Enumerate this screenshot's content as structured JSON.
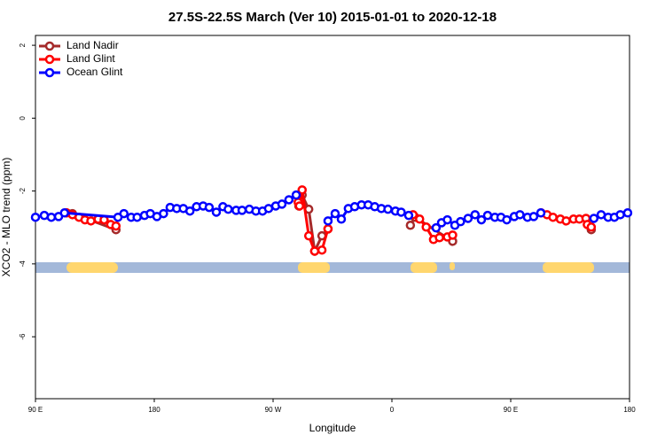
{
  "chart_data": {
    "type": "line",
    "title": "27.5S-22.5S March (Ver 10)   2015-01-01 to 2020-12-18",
    "x_label": "Longitude",
    "y_label": "XCO2 - MLO trend (ppm)",
    "xlim": [
      90,
      540
    ],
    "xticks": [
      {
        "value": 90,
        "label": "90 E"
      },
      180,
      {
        "value": 270,
        "label": "90 W"
      },
      {
        "value": 360,
        "label": "0"
      },
      {
        "value": 450,
        "label": "90 E"
      },
      {
        "value": 540,
        "label": "180"
      }
    ],
    "ylim": [
      -7.7,
      2.27
    ],
    "yticks": [
      2,
      0,
      -2,
      -4,
      -6
    ],
    "legend": "top-left",
    "series": [
      {
        "name": "Land Nadir",
        "color": "#a52a2a",
        "x": [
          113.5,
          118,
          151,
          null,
          289.5,
          292,
          297,
          301.5,
          307,
          311.6,
          null,
          374,
          377.5,
          406,
          null,
          511
        ],
        "values": [
          -2.6,
          -2.62,
          -3.06,
          null,
          -2.41,
          -2.11,
          -2.5,
          -3.65,
          -3.23,
          -3.04,
          null,
          -2.94,
          -2.72,
          -3.38,
          null,
          -3.06
        ]
      },
      {
        "name": "Land Glint",
        "color": "#ff0000",
        "x": [
          113.5,
          118,
          123,
          127.5,
          132,
          137.5,
          142,
          147,
          151,
          null,
          289,
          290,
          292,
          297,
          301.5,
          307,
          311.6,
          null,
          376,
          381,
          386,
          391.5,
          396,
          402,
          406,
          null,
          473,
          477.5,
          482,
          487.6,
          492,
          497.6,
          502,
          507,
          508,
          511
        ],
        "values": [
          -2.6,
          -2.65,
          -2.72,
          -2.79,
          -2.82,
          -2.77,
          -2.79,
          -2.92,
          -2.96,
          null,
          -2.31,
          -2.41,
          -1.97,
          -3.23,
          -3.65,
          -3.62,
          -3.04,
          null,
          -2.65,
          -2.77,
          -2.99,
          -3.33,
          -3.28,
          -3.26,
          -3.21,
          null,
          -2.6,
          -2.65,
          -2.72,
          -2.77,
          -2.82,
          -2.77,
          -2.77,
          -2.75,
          -2.92,
          -2.99
        ]
      },
      {
        "name": "Ocean Glint",
        "color": "#0000ff",
        "x": [
          90,
          96.7,
          102,
          107.5,
          112,
          152.5,
          157,
          162.5,
          167,
          172.6,
          177,
          182,
          187,
          192,
          197,
          202,
          207,
          212,
          217,
          221.6,
          227,
          232,
          236,
          242,
          246.5,
          252,
          257,
          262,
          266.6,
          272,
          276.7,
          282,
          287.5,
          null,
          311.6,
          317,
          321.7,
          327,
          331.8,
          337,
          342,
          347,
          352,
          357,
          362.7,
          367,
          372.7,
          null,
          393.5,
          397.6,
          402,
          407.7,
          412,
          417.7,
          423,
          427.8,
          432.5,
          438,
          442.6,
          447,
          452.7,
          457,
          462.7,
          467.4,
          472.8,
          null,
          513,
          518.5,
          523.8,
          528.5,
          533,
          538.6
        ],
        "values": [
          -2.72,
          -2.67,
          -2.72,
          -2.7,
          -2.6,
          -2.72,
          -2.62,
          -2.72,
          -2.72,
          -2.67,
          -2.62,
          -2.7,
          -2.62,
          -2.45,
          -2.48,
          -2.48,
          -2.55,
          -2.43,
          -2.41,
          -2.45,
          -2.58,
          -2.43,
          -2.5,
          -2.53,
          -2.53,
          -2.5,
          -2.55,
          -2.55,
          -2.48,
          -2.41,
          -2.36,
          -2.24,
          -2.11,
          null,
          -2.82,
          -2.62,
          -2.77,
          -2.48,
          -2.43,
          -2.38,
          -2.38,
          -2.43,
          -2.48,
          -2.5,
          -2.55,
          -2.58,
          -2.67,
          null,
          -3.01,
          -2.87,
          -2.79,
          -2.94,
          -2.84,
          -2.75,
          -2.65,
          -2.79,
          -2.67,
          -2.72,
          -2.72,
          -2.79,
          -2.7,
          -2.65,
          -2.72,
          -2.7,
          -2.6,
          null,
          -2.75,
          -2.65,
          -2.72,
          -2.72,
          -2.65,
          -2.6
        ]
      }
    ]
  }
}
